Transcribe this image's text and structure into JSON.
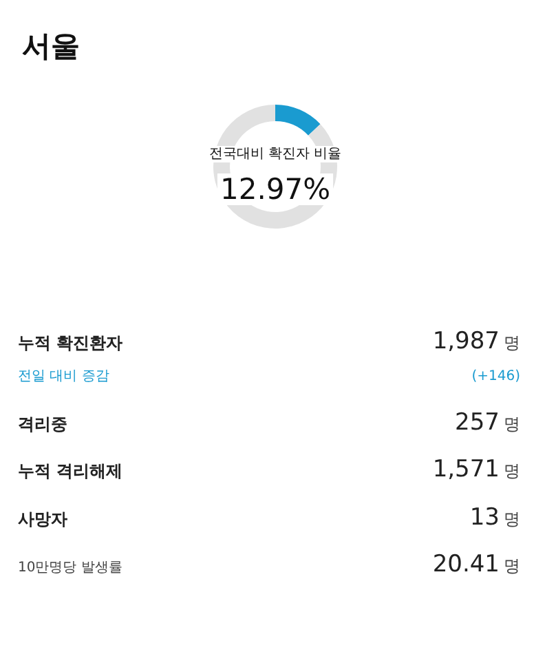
{
  "chart_data": [
    {
      "type": "donut",
      "title": "서울",
      "categories": [
        null,
        null
      ],
      "values": [
        12.97,
        87.03
      ],
      "colors": [
        "#1a9bd0",
        "#e1e1e1"
      ],
      "annotations": [
        "전국대비 확진자 비율",
        "12.97%"
      ]
    },
    {
      "type": "other",
      "annotations": [
        "누적 확진환자",
        "1,987 명",
        "전일 대비 증감",
        "(+146)",
        "격리중",
        "257 명",
        "누적 격리해제",
        "1,571 명",
        "사망자",
        "13 명",
        "10만명당 발생률",
        "20.41 명"
      ]
    }
  ]
}
